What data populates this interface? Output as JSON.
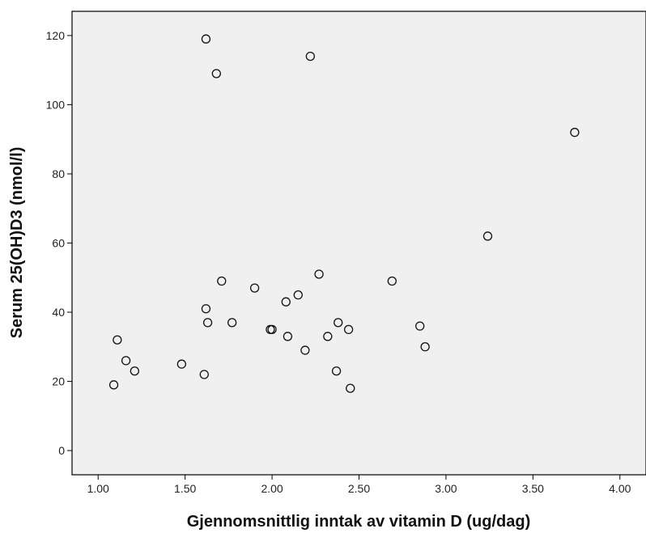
{
  "chart_data": {
    "type": "scatter",
    "xlabel": "Gjennomsnittlig inntak av vitamin D (ug/dag)",
    "ylabel": "Serum 25(OH)D3 (nmol/l)",
    "xlim": [
      0.85,
      4.15
    ],
    "ylim": [
      -7,
      127
    ],
    "xticks": [
      "1.00",
      "1.50",
      "2.00",
      "2.50",
      "3.00",
      "3.50",
      "4.00"
    ],
    "yticks": [
      "0",
      "20",
      "40",
      "60",
      "80",
      "100",
      "120"
    ],
    "grid": false,
    "plot_background": "#f0f0f0",
    "marker": "hollow-circle",
    "points": [
      {
        "x": 1.09,
        "y": 19
      },
      {
        "x": 1.11,
        "y": 32
      },
      {
        "x": 1.16,
        "y": 26
      },
      {
        "x": 1.21,
        "y": 23
      },
      {
        "x": 1.48,
        "y": 25
      },
      {
        "x": 1.61,
        "y": 22
      },
      {
        "x": 1.62,
        "y": 41
      },
      {
        "x": 1.62,
        "y": 119
      },
      {
        "x": 1.63,
        "y": 37
      },
      {
        "x": 1.68,
        "y": 109
      },
      {
        "x": 1.71,
        "y": 49
      },
      {
        "x": 1.77,
        "y": 37
      },
      {
        "x": 1.9,
        "y": 47
      },
      {
        "x": 1.99,
        "y": 35
      },
      {
        "x": 2.0,
        "y": 35
      },
      {
        "x": 2.08,
        "y": 43
      },
      {
        "x": 2.09,
        "y": 33
      },
      {
        "x": 2.15,
        "y": 45
      },
      {
        "x": 2.19,
        "y": 29
      },
      {
        "x": 2.22,
        "y": 114
      },
      {
        "x": 2.27,
        "y": 51
      },
      {
        "x": 2.32,
        "y": 33
      },
      {
        "x": 2.37,
        "y": 23
      },
      {
        "x": 2.38,
        "y": 37
      },
      {
        "x": 2.44,
        "y": 35
      },
      {
        "x": 2.45,
        "y": 18
      },
      {
        "x": 2.69,
        "y": 49
      },
      {
        "x": 2.85,
        "y": 36
      },
      {
        "x": 2.88,
        "y": 30
      },
      {
        "x": 3.24,
        "y": 62
      },
      {
        "x": 3.74,
        "y": 92
      }
    ]
  }
}
